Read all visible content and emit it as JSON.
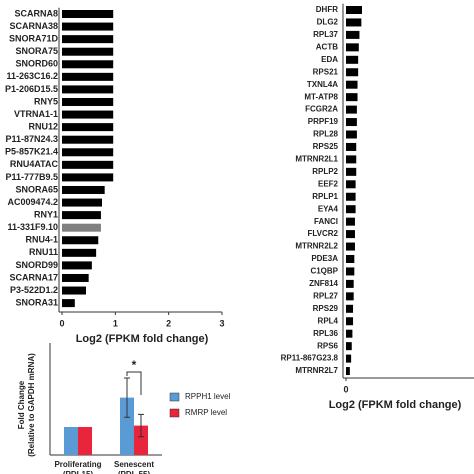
{
  "chart_data": [
    {
      "type": "hbar",
      "categories": [
        "SCARNA8",
        "SCARNA38",
        "SNORA71D",
        "SNORA75",
        "SNORD60",
        "11-263C16.2",
        "P1-206D15.5",
        "RNY5",
        "VTRNA1-1",
        "RNU12",
        "P11-87N24.3",
        "P5-857K21.4",
        "RNU4ATAC",
        "P11-777B9.5",
        "SNORA65",
        "AC009474.2",
        "RNY1",
        "11-331F9.10",
        "RNU4-1",
        "RNU11",
        "SNORD99",
        "SCARNA17",
        "P3-522D1.2",
        "SNORA31"
      ],
      "values": [
        0.96,
        0.96,
        0.96,
        0.96,
        0.96,
        0.96,
        0.96,
        0.96,
        0.96,
        0.96,
        0.96,
        0.96,
        0.96,
        0.96,
        0.8,
        0.75,
        0.73,
        0.73,
        0.68,
        0.64,
        0.56,
        0.5,
        0.45,
        0.24
      ],
      "colors": [
        "#000000",
        "#000000",
        "#000000",
        "#000000",
        "#000000",
        "#000000",
        "#000000",
        "#000000",
        "#000000",
        "#000000",
        "#000000",
        "#000000",
        "#000000",
        "#000000",
        "#000000",
        "#000000",
        "#000000",
        "#808080",
        "#000000",
        "#000000",
        "#000000",
        "#000000",
        "#000000",
        "#000000"
      ],
      "xlim": [
        0,
        3
      ],
      "xticks": [
        0,
        1,
        2,
        3
      ],
      "x_label": "Log2 (FPKM fold change)"
    },
    {
      "type": "hbar",
      "categories": [
        "DHFR",
        "DLG2",
        "RPL37",
        "ACTB",
        "EDA",
        "RPS21",
        "TXNL4A",
        "MT-ATP8",
        "FCGR2A",
        "PRPF19",
        "RPL28",
        "RPS25",
        "MTRNR2L1",
        "RPLP2",
        "EEF2",
        "RPLP1",
        "EYA4",
        "FANCI",
        "FLVCR2",
        "MTRNR2L2",
        "PDE3A",
        "C1QBP",
        "ZNF814",
        "RPL27",
        "RPS29",
        "RPL4",
        "RPL36",
        "RPS6",
        "RP11-867G23.8",
        "MTRNR2L7"
      ],
      "values": [
        1.25,
        1.2,
        1.05,
        1.0,
        0.95,
        0.95,
        0.9,
        0.9,
        0.85,
        0.85,
        0.85,
        0.8,
        0.8,
        0.8,
        0.75,
        0.75,
        0.75,
        0.7,
        0.7,
        0.7,
        0.65,
        0.65,
        0.6,
        0.6,
        0.55,
        0.55,
        0.5,
        0.45,
        0.4,
        0.3
      ],
      "color": "#000000",
      "xlim": [
        0,
        10
      ],
      "xticks": [
        0
      ],
      "x_label": "Log2 (FPKM fold change)"
    },
    {
      "type": "grouped-bar",
      "categories": [
        "Proliferating (PDL15)",
        "Senescent (PDL 55)"
      ],
      "series": [
        {
          "name": "RPPH1 level",
          "color": "#5b9bd5",
          "values": [
            1,
            2.05
          ],
          "errors": [
            0,
            0.7
          ]
        },
        {
          "name": "RMRP level",
          "color": "#e8253a",
          "values": [
            1,
            1.05
          ],
          "errors": [
            0,
            0.4
          ]
        }
      ],
      "ylim": [
        0,
        4
      ],
      "y_label": [
        "Fold Change",
        "(Relative to GAPDH mRNA)"
      ],
      "annotation": "*"
    }
  ]
}
